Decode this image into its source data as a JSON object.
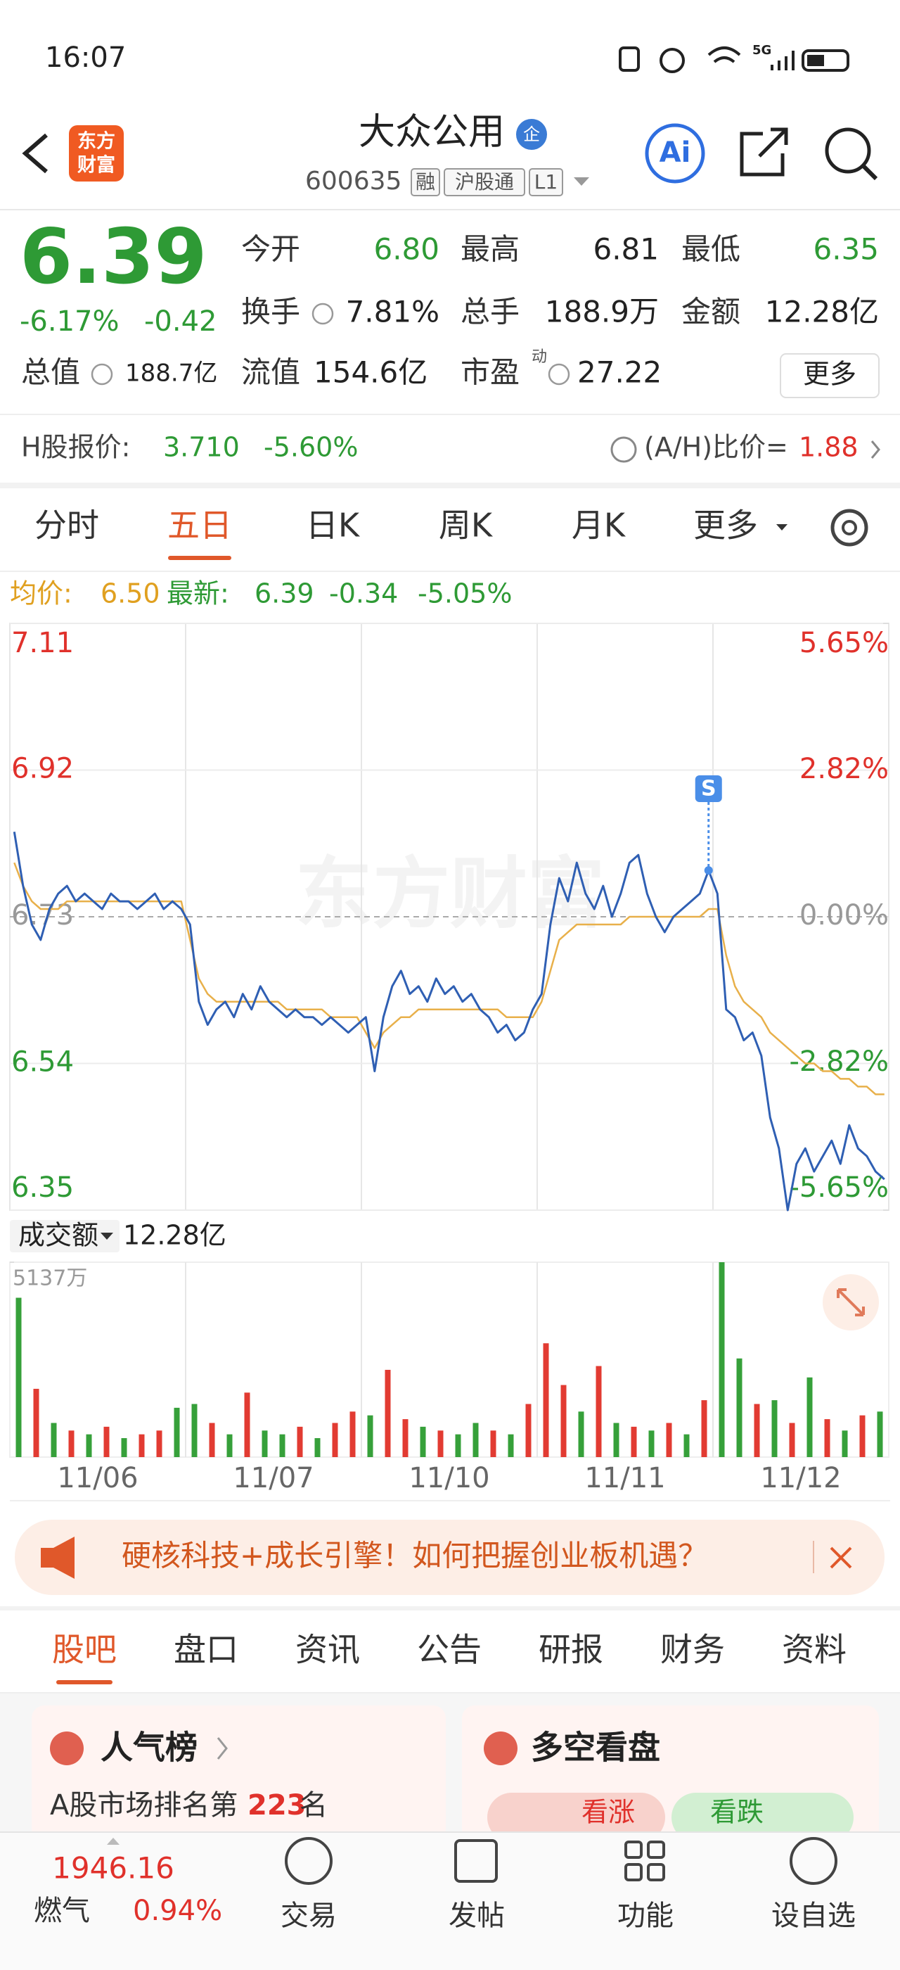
{
  "status_bar": {
    "time": "16:07",
    "network": "5G"
  },
  "header": {
    "logo": [
      "东方",
      "财富"
    ],
    "title": "大众公用",
    "badge": "企",
    "code": "600635",
    "tags": [
      "融",
      "沪股通",
      "L1"
    ],
    "ai": "Ai"
  },
  "quote": {
    "price": "6.39",
    "change_pct": "-6.17%",
    "change": "-0.42",
    "stats": [
      {
        "label": "今开",
        "value": "6.80",
        "color": "#2e9a35"
      },
      {
        "label": "最高",
        "value": "6.81"
      },
      {
        "label": "最低",
        "value": "6.35",
        "color": "#2e9a35"
      },
      {
        "label": "换手",
        "value": "7.81%"
      },
      {
        "label": "总手",
        "value": "188.9万"
      },
      {
        "label": "金额",
        "value": "12.28亿"
      },
      {
        "label": "总值",
        "value": "188.7亿"
      },
      {
        "label": "流值",
        "value": "154.6亿"
      },
      {
        "label": "市盈",
        "sup": "动",
        "value": "27.22"
      }
    ],
    "more": "更多"
  },
  "h_share": {
    "label": "H股报价:",
    "price": "3.710",
    "change_pct": "-5.60%",
    "ratio_label": "(A/H)比价=",
    "ratio": "1.88"
  },
  "tabs": {
    "items": [
      "分时",
      "五日",
      "日K",
      "周K",
      "月K",
      "更多"
    ],
    "active": 1
  },
  "info": {
    "avg_label": "均价:",
    "avg": "6.50",
    "latest_label": "最新:",
    "latest": "6.39",
    "change": "-0.34",
    "change_pct": "-5.05%"
  },
  "chart": {
    "type": "line",
    "watermark": "东方财富",
    "ylim": [
      6.35,
      7.11
    ],
    "yticks": [
      7.11,
      6.92,
      6.73,
      6.54,
      6.35
    ],
    "y2lim": [
      -5.65,
      5.65
    ],
    "y2ticks": [
      {
        "value": 5.65,
        "label": "5.65%"
      },
      {
        "value": 2.82,
        "label": "2.82%"
      },
      {
        "value": 0,
        "label": "0.00%"
      },
      {
        "value": -2.82,
        "label": "-2.82%"
      },
      {
        "value": -5.65,
        "label": "-5.65%"
      }
    ],
    "days": [
      "11/06",
      "11/07",
      "11/10",
      "11/11",
      "11/12"
    ],
    "marker": "S",
    "series": [
      {
        "color": "#2f5fb3",
        "values": [
          6.84,
          6.77,
          6.72,
          6.7,
          6.74,
          6.76,
          6.77,
          6.75,
          6.76,
          6.75,
          6.74,
          6.76,
          6.75,
          6.75,
          6.74,
          6.75,
          6.76,
          6.74,
          6.75,
          6.74,
          6.72,
          6.62,
          6.59,
          6.61,
          6.62,
          6.6,
          6.63,
          6.61,
          6.64,
          6.62,
          6.61,
          6.6,
          6.61,
          6.6,
          6.6,
          6.59,
          6.6,
          6.59,
          6.58,
          6.59,
          6.6,
          6.53,
          6.6,
          6.64,
          6.66,
          6.63,
          6.64,
          6.62,
          6.65,
          6.63,
          6.64,
          6.62,
          6.63,
          6.61,
          6.6,
          6.58,
          6.59,
          6.57,
          6.58,
          6.61,
          6.63,
          6.72,
          6.78,
          6.75,
          6.8,
          6.76,
          6.74,
          6.77,
          6.73,
          6.76,
          6.8,
          6.81,
          6.76,
          6.73,
          6.71,
          6.73,
          6.74,
          6.75,
          6.76,
          6.79,
          6.76,
          6.61,
          6.6,
          6.57,
          6.58,
          6.55,
          6.47,
          6.43,
          6.35,
          6.41,
          6.43,
          6.4,
          6.42,
          6.44,
          6.41,
          6.46,
          6.43,
          6.42,
          6.4,
          6.39
        ]
      },
      {
        "color": "#e8b04a",
        "values": [
          6.8,
          6.77,
          6.75,
          6.74,
          6.74,
          6.74,
          6.75,
          6.75,
          6.75,
          6.75,
          6.75,
          6.75,
          6.75,
          6.75,
          6.75,
          6.75,
          6.75,
          6.75,
          6.75,
          6.75,
          6.7,
          6.65,
          6.63,
          6.62,
          6.62,
          6.62,
          6.62,
          6.62,
          6.62,
          6.62,
          6.62,
          6.61,
          6.61,
          6.61,
          6.61,
          6.61,
          6.6,
          6.6,
          6.6,
          6.6,
          6.58,
          6.56,
          6.58,
          6.59,
          6.6,
          6.6,
          6.61,
          6.61,
          6.61,
          6.61,
          6.61,
          6.61,
          6.61,
          6.61,
          6.61,
          6.61,
          6.6,
          6.6,
          6.6,
          6.6,
          6.62,
          6.66,
          6.7,
          6.71,
          6.72,
          6.72,
          6.72,
          6.72,
          6.72,
          6.72,
          6.73,
          6.73,
          6.73,
          6.73,
          6.73,
          6.73,
          6.73,
          6.73,
          6.73,
          6.74,
          6.74,
          6.68,
          6.64,
          6.62,
          6.61,
          6.6,
          6.58,
          6.57,
          6.56,
          6.55,
          6.54,
          6.54,
          6.53,
          6.53,
          6.52,
          6.52,
          6.51,
          6.51,
          6.5,
          6.5
        ]
      }
    ],
    "volume": {
      "label": "成交额",
      "total": "12.28亿",
      "ylim": [
        0,
        5137
      ],
      "yticks": [
        {
          "value": 5137,
          "label": "5137万"
        }
      ],
      "values": [
        4200,
        1800,
        900,
        700,
        600,
        800,
        500,
        600,
        700,
        1300,
        1400,
        900,
        600,
        1700,
        700,
        600,
        800,
        500,
        900,
        1200,
        1100,
        2300,
        1000,
        800,
        700,
        600,
        900,
        700,
        600,
        1400,
        3000,
        1900,
        1200,
        2400,
        900,
        800,
        700,
        900,
        600,
        1500,
        5137,
        2600,
        1400,
        1500,
        900,
        2100,
        1000,
        700,
        1100,
        1200
      ],
      "colors": [
        "#36a03a",
        "#e23b32",
        "#36a03a",
        "#e23b32",
        "#36a03a",
        "#e23b32",
        "#36a03a",
        "#e23b32",
        "#e23b32",
        "#36a03a",
        "#36a03a",
        "#e23b32",
        "#36a03a",
        "#e23b32",
        "#36a03a",
        "#36a03a",
        "#e23b32",
        "#36a03a",
        "#e23b32",
        "#e23b32",
        "#36a03a",
        "#e23b32",
        "#e23b32",
        "#36a03a",
        "#e23b32",
        "#36a03a",
        "#36a03a",
        "#e23b32",
        "#36a03a",
        "#e23b32",
        "#e23b32",
        "#e23b32",
        "#36a03a",
        "#e23b32",
        "#36a03a",
        "#e23b32",
        "#36a03a",
        "#e23b32",
        "#36a03a",
        "#e23b32",
        "#36a03a",
        "#36a03a",
        "#e23b32",
        "#36a03a",
        "#e23b32",
        "#36a03a",
        "#e23b32",
        "#36a03a",
        "#e23b32",
        "#36a03a"
      ]
    }
  },
  "banner": {
    "text": "硬核科技+成长引擎！如何把握创业板机遇？"
  },
  "sections": {
    "items": [
      "股吧",
      "盘口",
      "资讯",
      "公告",
      "研报",
      "财务",
      "资料"
    ],
    "active": 0
  },
  "cards": [
    {
      "title": "人气榜",
      "rank_prefix": "A股市场排名第",
      "rank": "223",
      "rank_suffix": "名"
    },
    {
      "title": "多空看盘",
      "up": "看涨",
      "down": "看跌"
    }
  ],
  "bottom_bar": {
    "index": "1946.16",
    "sector": "燃气",
    "sector_pct": "0.94%",
    "nav": [
      "交易",
      "发帖",
      "功能",
      "设自选"
    ]
  }
}
